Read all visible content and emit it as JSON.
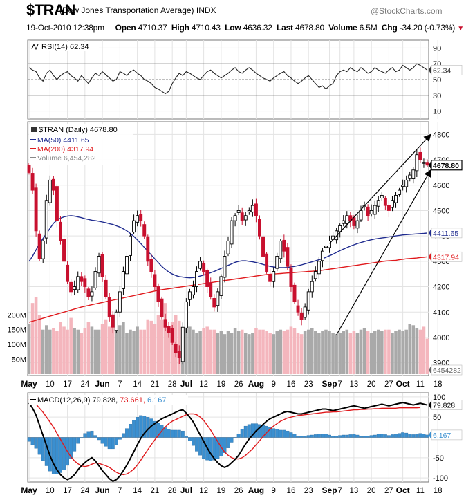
{
  "header": {
    "symbol": "$TRAN",
    "name": "(Dow Jones Transportation Average) INDX",
    "brand": "@StockCharts.com",
    "date": "19-Oct-2010 12:38pm",
    "open_label": "Open",
    "open": "4710.37",
    "high_label": "High",
    "high": "4710.43",
    "low_label": "Low",
    "low": "4636.32",
    "last_label": "Last",
    "last": "4678.80",
    "volume_label": "Volume",
    "volume": "6.5M",
    "chg_label": "Chg",
    "chg": "-34.20 (-0.73%)",
    "chg_arrow": "▼"
  },
  "colors": {
    "up": "#000000",
    "down": "#c8102e",
    "ma50": "#1f2b8f",
    "ma200": "#e0191c",
    "vol_up": "#a9a9a9",
    "vol_down": "#f4b6bd",
    "macd_hist": "#3a8fd0",
    "macd_line": "#000000",
    "signal_line": "#e0191c",
    "grid": "#e3e3e3"
  },
  "chart_data": [
    {
      "id": "rsi",
      "type": "line",
      "legend": "RSI(14) 62.34",
      "last_value": "62.34",
      "ylim": [
        0,
        100
      ],
      "yticks": [
        "90",
        "70",
        "50",
        "30",
        "10"
      ],
      "ref_lines": [
        70,
        50,
        30
      ],
      "values": [
        65,
        62,
        60,
        52,
        48,
        58,
        62,
        55,
        50,
        55,
        58,
        60,
        55,
        52,
        48,
        55,
        50,
        45,
        52,
        58,
        55,
        60,
        56,
        52,
        48,
        50,
        60,
        58,
        55,
        60,
        62,
        58,
        55,
        50,
        48,
        45,
        40,
        38,
        35,
        32,
        35,
        45,
        52,
        58,
        55,
        60,
        58,
        55,
        52,
        50,
        55,
        60,
        62,
        58,
        55,
        52,
        55,
        58,
        62,
        65,
        60,
        58,
        62,
        65,
        62,
        58,
        55,
        52,
        50,
        48,
        52,
        55,
        58,
        60,
        55,
        52,
        48,
        45,
        48,
        52,
        55,
        50,
        45,
        40,
        42,
        38,
        42,
        45,
        55,
        60,
        62,
        60,
        65,
        62,
        60,
        65,
        62,
        58,
        60,
        65,
        62,
        60,
        58,
        62,
        65,
        60,
        62,
        68,
        65,
        62,
        65,
        70,
        68,
        65,
        62
      ]
    },
    {
      "id": "price",
      "type": "candlestick",
      "title": "$TRAN (Daily) 4678.80",
      "legend": [
        {
          "key": "ma50",
          "label": "MA(50) 4411.65"
        },
        {
          "key": "ma200",
          "label": "MA(200) 4317.94"
        },
        {
          "key": "volume",
          "label": "Volume 6,454,282"
        }
      ],
      "ylim": [
        3850,
        4850
      ],
      "yticks": [
        "4800",
        "4700",
        "4600",
        "4500",
        "4400",
        "4300",
        "4200",
        "4100",
        "4000",
        "3900"
      ],
      "last_label": "4678.80",
      "ma50_label": "4411.65",
      "ma200_label": "4317.94",
      "volume_last_label": "6454282",
      "volume_ticks": [
        "200M",
        "150M",
        "100M",
        "50M"
      ],
      "volume_max": 350,
      "closes": [
        4650,
        4580,
        4420,
        4310,
        4380,
        4540,
        4620,
        4580,
        4460,
        4380,
        4300,
        4220,
        4180,
        4200,
        4240,
        4220,
        4200,
        4160,
        4180,
        4260,
        4320,
        4240,
        4160,
        4080,
        4040,
        4100,
        4180,
        4260,
        4320,
        4400,
        4460,
        4480,
        4460,
        4400,
        4300,
        4260,
        4200,
        4140,
        4080,
        4040,
        4020,
        3980,
        3940,
        3920,
        4040,
        4140,
        4180,
        4200,
        4260,
        4300,
        4260,
        4200,
        4160,
        4120,
        4180,
        4240,
        4320,
        4380,
        4460,
        4480,
        4500,
        4460,
        4480,
        4500,
        4520,
        4480,
        4400,
        4320,
        4260,
        4220,
        4260,
        4320,
        4380,
        4340,
        4280,
        4200,
        4140,
        4100,
        4070,
        4120,
        4180,
        4220,
        4260,
        4300,
        4340,
        4360,
        4380,
        4400,
        4420,
        4440,
        4460,
        4480,
        4460,
        4440,
        4460,
        4500,
        4520,
        4480,
        4500,
        4520,
        4540,
        4560,
        4520,
        4500,
        4540,
        4560,
        4580,
        4600,
        4620,
        4640,
        4660,
        4720,
        4700,
        4690,
        4679
      ],
      "ma50": [
        4300,
        4320,
        4345,
        4370,
        4390,
        4410,
        4430,
        4450,
        4462,
        4470,
        4475,
        4478,
        4480,
        4478,
        4475,
        4472,
        4468,
        4465,
        4462,
        4460,
        4458,
        4455,
        4452,
        4448,
        4445,
        4440,
        4435,
        4428,
        4420,
        4410,
        4398,
        4385,
        4370,
        4355,
        4340,
        4325,
        4310,
        4295,
        4280,
        4268,
        4258,
        4250,
        4244,
        4240,
        4238,
        4236,
        4235,
        4236,
        4238,
        4242,
        4246,
        4250,
        4255,
        4260,
        4266,
        4272,
        4278,
        4284,
        4290,
        4296,
        4300,
        4302,
        4302,
        4300,
        4298,
        4295,
        4292,
        4288,
        4284,
        4280,
        4278,
        4276,
        4275,
        4275,
        4276,
        4278,
        4280,
        4283,
        4286,
        4290,
        4294,
        4298,
        4302,
        4306,
        4310,
        4316,
        4322,
        4328,
        4335,
        4342,
        4348,
        4354,
        4360,
        4365,
        4370,
        4374,
        4378,
        4382,
        4385,
        4388,
        4390,
        4392,
        4394,
        4396,
        4398,
        4400,
        4402,
        4404,
        4405,
        4406,
        4407,
        4408,
        4409,
        4410,
        4411.65
      ],
      "ma200": [
        4060,
        4064,
        4068,
        4072,
        4076,
        4080,
        4084,
        4088,
        4092,
        4096,
        4100,
        4104,
        4108,
        4112,
        4116,
        4120,
        4123,
        4126,
        4129,
        4132,
        4135,
        4138,
        4141,
        4144,
        4147,
        4150,
        4153,
        4156,
        4159,
        4162,
        4165,
        4168,
        4171,
        4174,
        4177,
        4180,
        4183,
        4186,
        4188,
        4190,
        4192,
        4194,
        4196,
        4198,
        4200,
        4202,
        4204,
        4206,
        4208,
        4210,
        4212,
        4214,
        4216,
        4218,
        4220,
        4222,
        4224,
        4226,
        4228,
        4230,
        4232,
        4234,
        4236,
        4238,
        4240,
        4242,
        4244,
        4246,
        4248,
        4249,
        4250,
        4251,
        4252,
        4253,
        4254,
        4255,
        4256,
        4257,
        4258,
        4259,
        4260,
        4261,
        4262,
        4263,
        4265,
        4267,
        4269,
        4271,
        4273,
        4275,
        4277,
        4279,
        4281,
        4283,
        4285,
        4287,
        4289,
        4291,
        4293,
        4295,
        4297,
        4299,
        4301,
        4302,
        4303,
        4304,
        4306,
        4308,
        4310,
        4311,
        4312,
        4313,
        4315,
        4316,
        4317.94
      ],
      "volumes": [
        170,
        240,
        260,
        200,
        150,
        165,
        150,
        155,
        145,
        175,
        160,
        150,
        190,
        155,
        150,
        140,
        155,
        175,
        160,
        150,
        150,
        170,
        185,
        160,
        155,
        150,
        165,
        175,
        140,
        150,
        145,
        160,
        150,
        150,
        185,
        180,
        170,
        200,
        185,
        240,
        140,
        175,
        200,
        180,
        145,
        175,
        160,
        150,
        140,
        145,
        155,
        160,
        150,
        150,
        140,
        145,
        135,
        145,
        140,
        155,
        145,
        150,
        140,
        135,
        140,
        155,
        150,
        150,
        145,
        140,
        135,
        145,
        150,
        145,
        150,
        160,
        155,
        140,
        135,
        145,
        150,
        155,
        145,
        140,
        145,
        150,
        145,
        140,
        135,
        140,
        145,
        150,
        140,
        145,
        140,
        150,
        155,
        145,
        140,
        145,
        150,
        145,
        150,
        150,
        140,
        145,
        150,
        145,
        150,
        170,
        165,
        155,
        150,
        160,
        120
      ],
      "upper_channel": {
        "x1": 86,
        "y1": 4370,
        "x2": 115,
        "y2": 4800
      },
      "lower_channel": {
        "x1": 88,
        "y1": 4010,
        "x2": 115,
        "y2": 4660
      }
    },
    {
      "id": "macd",
      "type": "line",
      "legend_prefix": "MACD(12,26,9)",
      "legend_macd": "79.828",
      "legend_signal": "73.661",
      "legend_hist": "6.167",
      "ylim": [
        -110,
        110
      ],
      "yticks": [
        "100",
        "50",
        "-50",
        "-100"
      ],
      "last_macd_label": "79.828",
      "last_hist_label": "6.167",
      "macd": [
        85,
        72,
        55,
        30,
        5,
        -20,
        -45,
        -65,
        -80,
        -92,
        -100,
        -104,
        -100,
        -92,
        -80,
        -70,
        -62,
        -55,
        -50,
        -58,
        -70,
        -82,
        -92,
        -102,
        -108,
        -104,
        -95,
        -82,
        -68,
        -52,
        -35,
        -18,
        -2,
        10,
        20,
        28,
        34,
        40,
        46,
        50,
        54,
        58,
        62,
        66,
        68,
        60,
        50,
        38,
        22,
        6,
        -10,
        -26,
        -40,
        -52,
        -62,
        -70,
        -74,
        -70,
        -62,
        -54,
        -44,
        -30,
        -16,
        -4,
        6,
        16,
        24,
        32,
        40,
        46,
        50,
        54,
        58,
        62,
        64,
        62,
        60,
        58,
        58,
        60,
        62,
        64,
        66,
        68,
        70,
        70,
        68,
        66,
        68,
        70,
        72,
        74,
        76,
        78,
        76,
        74,
        72,
        74,
        76,
        78,
        80,
        82,
        80,
        78,
        80,
        82,
        84,
        86,
        84,
        82,
        80,
        82,
        84,
        82,
        79.828
      ],
      "signal": [
        95,
        90,
        82,
        72,
        62,
        50,
        38,
        25,
        10,
        -5,
        -20,
        -35,
        -48,
        -58,
        -65,
        -70,
        -72,
        -70,
        -66,
        -63,
        -64,
        -67,
        -70,
        -74,
        -80,
        -86,
        -90,
        -92,
        -90,
        -85,
        -78,
        -68,
        -56,
        -43,
        -30,
        -18,
        -6,
        5,
        16,
        26,
        34,
        40,
        44,
        48,
        52,
        56,
        58,
        58,
        56,
        50,
        42,
        30,
        18,
        4,
        -10,
        -24,
        -36,
        -44,
        -50,
        -53,
        -53,
        -50,
        -44,
        -36,
        -28,
        -18,
        -8,
        2,
        12,
        20,
        28,
        34,
        40,
        44,
        48,
        50,
        52,
        54,
        55,
        56,
        57,
        58,
        59,
        60,
        61,
        62,
        62,
        63,
        63,
        64,
        65,
        66,
        67,
        68,
        68,
        69,
        69,
        70,
        70,
        71,
        71,
        72,
        72,
        72,
        72,
        72,
        73,
        73,
        73,
        73,
        73,
        73,
        73.661
      ],
      "hist": [
        -10,
        -18,
        -27,
        -42,
        -57,
        -70,
        -83,
        -90,
        -90,
        -87,
        -80,
        -69,
        -52,
        -34,
        -15,
        0,
        10,
        15,
        16,
        5,
        -6,
        -15,
        -22,
        -28,
        -28,
        -18,
        -5,
        10,
        22,
        33,
        43,
        50,
        54,
        53,
        50,
        46,
        40,
        35,
        30,
        24,
        20,
        18,
        18,
        18,
        16,
        4,
        -8,
        -20,
        -34,
        -44,
        -52,
        -56,
        -58,
        -56,
        -52,
        -46,
        -38,
        -26,
        -12,
        -1,
        9,
        20,
        28,
        32,
        34,
        34,
        32,
        30,
        28,
        26,
        22,
        20,
        18,
        18,
        16,
        12,
        8,
        4,
        3,
        4,
        5,
        6,
        7,
        8,
        9,
        8,
        6,
        3,
        4,
        5,
        6,
        6,
        7,
        8,
        6,
        4,
        3,
        4,
        5,
        6,
        8,
        9,
        7,
        5,
        7,
        8,
        10,
        12,
        11,
        9,
        7,
        9,
        10,
        8,
        6.167
      ]
    }
  ],
  "x_axis": {
    "ticks": [
      {
        "i": 0,
        "label": "May",
        "bold": true
      },
      {
        "i": 6,
        "label": "10",
        "bold": false
      },
      {
        "i": 11,
        "label": "17",
        "bold": false
      },
      {
        "i": 16,
        "label": "24",
        "bold": false
      },
      {
        "i": 21,
        "label": "Jun",
        "bold": true
      },
      {
        "i": 26,
        "label": "7",
        "bold": false
      },
      {
        "i": 31,
        "label": "14",
        "bold": false
      },
      {
        "i": 36,
        "label": "21",
        "bold": false
      },
      {
        "i": 41,
        "label": "28",
        "bold": false
      },
      {
        "i": 45,
        "label": "Jul",
        "bold": true
      },
      {
        "i": 50,
        "label": "12",
        "bold": false
      },
      {
        "i": 55,
        "label": "19",
        "bold": false
      },
      {
        "i": 60,
        "label": "26",
        "bold": false
      },
      {
        "i": 65,
        "label": "Aug",
        "bold": true
      },
      {
        "i": 70,
        "label": "9",
        "bold": false
      },
      {
        "i": 75,
        "label": "16",
        "bold": false
      },
      {
        "i": 80,
        "label": "23",
        "bold": false
      },
      {
        "i": 86,
        "label": "Sep",
        "bold": true
      },
      {
        "i": 89,
        "label": "7",
        "bold": false
      },
      {
        "i": 93,
        "label": "13",
        "bold": false
      },
      {
        "i": 98,
        "label": "20",
        "bold": false
      },
      {
        "i": 103,
        "label": "27",
        "bold": false
      },
      {
        "i": 107,
        "label": "Oct",
        "bold": true
      },
      {
        "i": 112,
        "label": "11",
        "bold": false
      },
      {
        "i": 117,
        "label": "18",
        "bold": false
      }
    ]
  }
}
